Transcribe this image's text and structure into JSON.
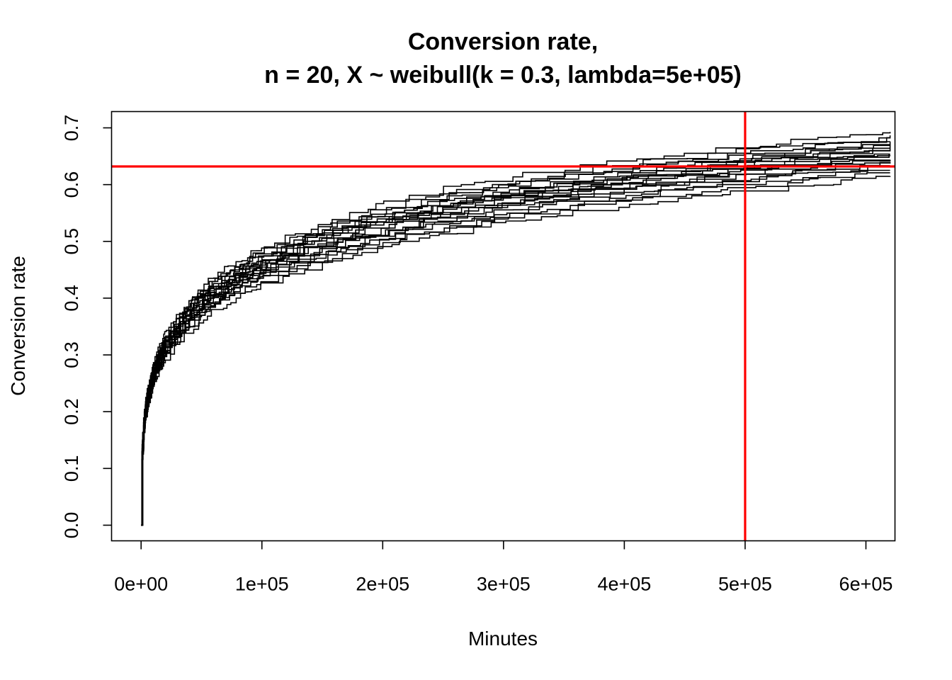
{
  "chart_data": {
    "type": "line",
    "title": "Conversion rate,",
    "subtitle": "n = 20, X ~ weibull(k = 0.3, lambda=5e+05)",
    "xlabel": "Minutes",
    "ylabel": "Conversion rate",
    "xlim": [
      -24450,
      624050
    ],
    "ylim": [
      -0.0275,
      0.7287
    ],
    "x_ticks": [
      0,
      100000,
      200000,
      300000,
      400000,
      500000,
      600000
    ],
    "x_tick_labels": [
      "0e+00",
      "1e+05",
      "2e+05",
      "3e+05",
      "4e+05",
      "5e+05",
      "6e+05"
    ],
    "y_ticks": [
      0.0,
      0.1,
      0.2,
      0.3,
      0.4,
      0.5,
      0.6,
      0.7
    ],
    "y_tick_labels": [
      "0.0",
      "0.1",
      "0.2",
      "0.3",
      "0.4",
      "0.5",
      "0.6",
      "0.7"
    ],
    "grid": false,
    "legend": "none",
    "line_color": "#000000",
    "reference_color": "#ff0000",
    "reference_lines": {
      "horizontal_y": 0.632,
      "vertical_x": 500000
    },
    "x": [
      0,
      2000,
      5000,
      10000,
      20000,
      40000,
      60000,
      100000,
      150000,
      200000,
      250000,
      300000,
      350000,
      400000,
      450000,
      500000,
      550000,
      620000
    ],
    "base_weibull_cdf": [
      0,
      0.174,
      0.222,
      0.266,
      0.317,
      0.374,
      0.411,
      0.46,
      0.502,
      0.532,
      0.556,
      0.576,
      0.592,
      0.607,
      0.62,
      0.632,
      0.643,
      0.656
    ],
    "series_offsets": [
      -0.045,
      -0.036,
      -0.03,
      -0.025,
      -0.021,
      -0.017,
      -0.013,
      -0.01,
      -0.007,
      -0.004,
      -0.001,
      0.002,
      0.005,
      0.008,
      0.011,
      0.014,
      0.018,
      0.022,
      0.027,
      0.035
    ],
    "series_count": 20
  }
}
